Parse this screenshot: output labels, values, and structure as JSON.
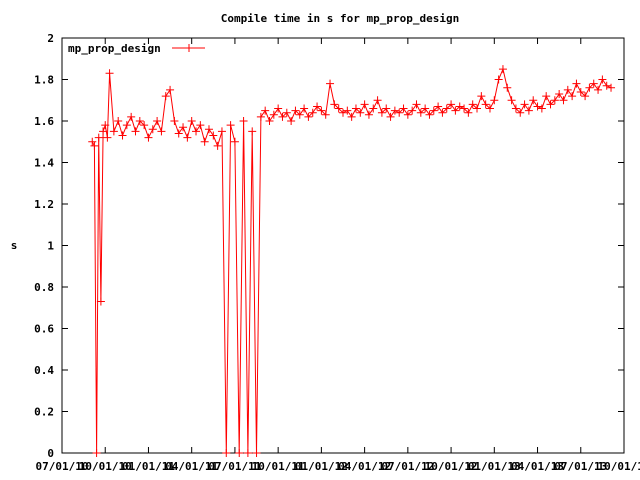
{
  "chart_data": {
    "type": "line",
    "title": "Compile time in s for mp_prop_design",
    "xlabel": "",
    "ylabel": "s",
    "ylim": [
      0,
      2
    ],
    "y_ticks": [
      "0",
      "0.2",
      "0.4",
      "0.6",
      "0.8",
      "1",
      "1.2",
      "1.4",
      "1.6",
      "1.8",
      "2"
    ],
    "x_tick_labels": [
      "07/01/10",
      "10/01/10",
      "01/01/11",
      "04/01/11",
      "07/01/11",
      "10/01/11",
      "01/01/12",
      "04/01/12",
      "07/01/12",
      "10/01/12",
      "01/01/13",
      "04/01/13",
      "07/01/13",
      "10/01/13"
    ],
    "x_range_index": [
      0,
      13
    ],
    "grid": false,
    "legend_position": "top-left",
    "series": [
      {
        "name": "mp_prop_design",
        "color": "#ff0000",
        "marker": "plus",
        "x": [
          0.7,
          0.75,
          0.8,
          0.85,
          0.9,
          0.95,
          1.0,
          1.05,
          1.1,
          1.2,
          1.3,
          1.4,
          1.5,
          1.6,
          1.7,
          1.8,
          1.9,
          2.0,
          2.1,
          2.2,
          2.3,
          2.4,
          2.5,
          2.6,
          2.7,
          2.8,
          2.9,
          3.0,
          3.1,
          3.2,
          3.3,
          3.4,
          3.5,
          3.6,
          3.7,
          3.8,
          3.9,
          4.0,
          4.1,
          4.2,
          4.3,
          4.4,
          4.5,
          4.6,
          4.7,
          4.8,
          4.9,
          5.0,
          5.1,
          5.2,
          5.3,
          5.4,
          5.5,
          5.6,
          5.7,
          5.8,
          5.9,
          6.0,
          6.1,
          6.2,
          6.3,
          6.4,
          6.5,
          6.6,
          6.7,
          6.8,
          6.9,
          7.0,
          7.1,
          7.2,
          7.3,
          7.4,
          7.5,
          7.6,
          7.7,
          7.8,
          7.9,
          8.0,
          8.1,
          8.2,
          8.3,
          8.4,
          8.5,
          8.6,
          8.7,
          8.8,
          8.9,
          9.0,
          9.1,
          9.2,
          9.3,
          9.4,
          9.5,
          9.6,
          9.7,
          9.8,
          9.9,
          10.0,
          10.1,
          10.2,
          10.3,
          10.4,
          10.5,
          10.6,
          10.7,
          10.8,
          10.9,
          11.0,
          11.1,
          11.2,
          11.3,
          11.4,
          11.5,
          11.6,
          11.7,
          11.8,
          11.9,
          12.0,
          12.1,
          12.2,
          12.3,
          12.4,
          12.5,
          12.6,
          12.7
        ],
        "y": [
          1.5,
          1.48,
          0.0,
          1.52,
          0.73,
          1.55,
          1.58,
          1.52,
          1.83,
          1.55,
          1.6,
          1.53,
          1.58,
          1.62,
          1.55,
          1.6,
          1.58,
          1.52,
          1.56,
          1.6,
          1.55,
          1.72,
          1.75,
          1.6,
          1.54,
          1.57,
          1.52,
          1.6,
          1.55,
          1.58,
          1.5,
          1.56,
          1.53,
          1.48,
          1.55,
          0.0,
          1.58,
          1.5,
          0.0,
          1.6,
          0.0,
          1.55,
          0.0,
          1.62,
          1.65,
          1.6,
          1.63,
          1.66,
          1.62,
          1.64,
          1.6,
          1.65,
          1.63,
          1.66,
          1.62,
          1.64,
          1.67,
          1.65,
          1.63,
          1.78,
          1.68,
          1.66,
          1.64,
          1.65,
          1.62,
          1.66,
          1.64,
          1.68,
          1.63,
          1.66,
          1.7,
          1.64,
          1.66,
          1.62,
          1.65,
          1.64,
          1.66,
          1.63,
          1.65,
          1.68,
          1.64,
          1.66,
          1.63,
          1.65,
          1.67,
          1.64,
          1.66,
          1.68,
          1.65,
          1.67,
          1.66,
          1.64,
          1.68,
          1.66,
          1.72,
          1.68,
          1.66,
          1.7,
          1.8,
          1.85,
          1.76,
          1.7,
          1.66,
          1.64,
          1.68,
          1.65,
          1.7,
          1.67,
          1.66,
          1.72,
          1.68,
          1.7,
          1.73,
          1.7,
          1.75,
          1.72,
          1.78,
          1.74,
          1.72,
          1.76,
          1.78,
          1.75,
          1.8,
          1.77,
          1.76
        ]
      }
    ]
  }
}
